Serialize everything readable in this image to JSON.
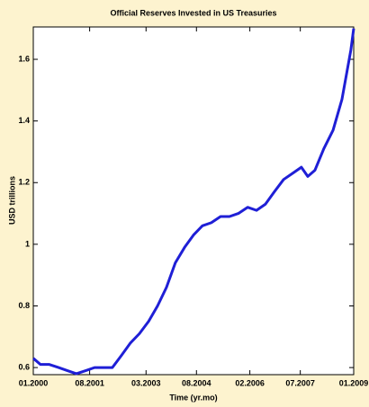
{
  "chart_data": {
    "type": "line",
    "title": "Official Reserves Invested in US Treasuries",
    "x_label": "Time (yr.mo)",
    "y_label": "USD trillions",
    "x": [
      2000.0,
      2000.2,
      2000.45,
      2000.71,
      2000.96,
      2001.21,
      2001.47,
      2001.72,
      2001.97,
      2002.22,
      2002.48,
      2002.73,
      2002.98,
      2003.24,
      2003.49,
      2003.74,
      2003.99,
      2004.25,
      2004.5,
      2004.75,
      2005.0,
      2005.26,
      2005.51,
      2005.76,
      2006.02,
      2006.27,
      2006.52,
      2006.77,
      2007.03,
      2007.28,
      2007.53,
      2007.71,
      2007.91,
      2008.16,
      2008.42,
      2008.67,
      2008.92,
      2009.0
    ],
    "series": [
      {
        "name": "Official Reserves",
        "color": "#1f1fd6",
        "values": [
          0.63,
          0.61,
          0.61,
          0.6,
          0.59,
          0.58,
          0.59,
          0.6,
          0.6,
          0.6,
          0.64,
          0.68,
          0.71,
          0.75,
          0.8,
          0.86,
          0.94,
          0.99,
          1.03,
          1.06,
          1.07,
          1.09,
          1.09,
          1.1,
          1.12,
          1.11,
          1.13,
          1.17,
          1.21,
          1.23,
          1.25,
          1.22,
          1.24,
          1.31,
          1.37,
          1.47,
          1.63,
          1.7
        ]
      }
    ],
    "xlim": [
      2000.0,
      2009.0
    ],
    "xticks": [
      {
        "value": 2000.0,
        "label": "01.2000"
      },
      {
        "value": 2001.583,
        "label": "08.2001"
      },
      {
        "value": 2003.167,
        "label": "03.2003"
      },
      {
        "value": 2004.583,
        "label": "08.2004"
      },
      {
        "value": 2006.083,
        "label": "02.2006"
      },
      {
        "value": 2007.5,
        "label": "07.2007"
      },
      {
        "value": 2009.0,
        "label": "01.2009"
      }
    ],
    "ylim": [
      0.577,
      1.705
    ],
    "yticks": [
      0.6,
      0.8,
      1,
      1.2,
      1.4,
      1.6
    ],
    "grid": false
  }
}
